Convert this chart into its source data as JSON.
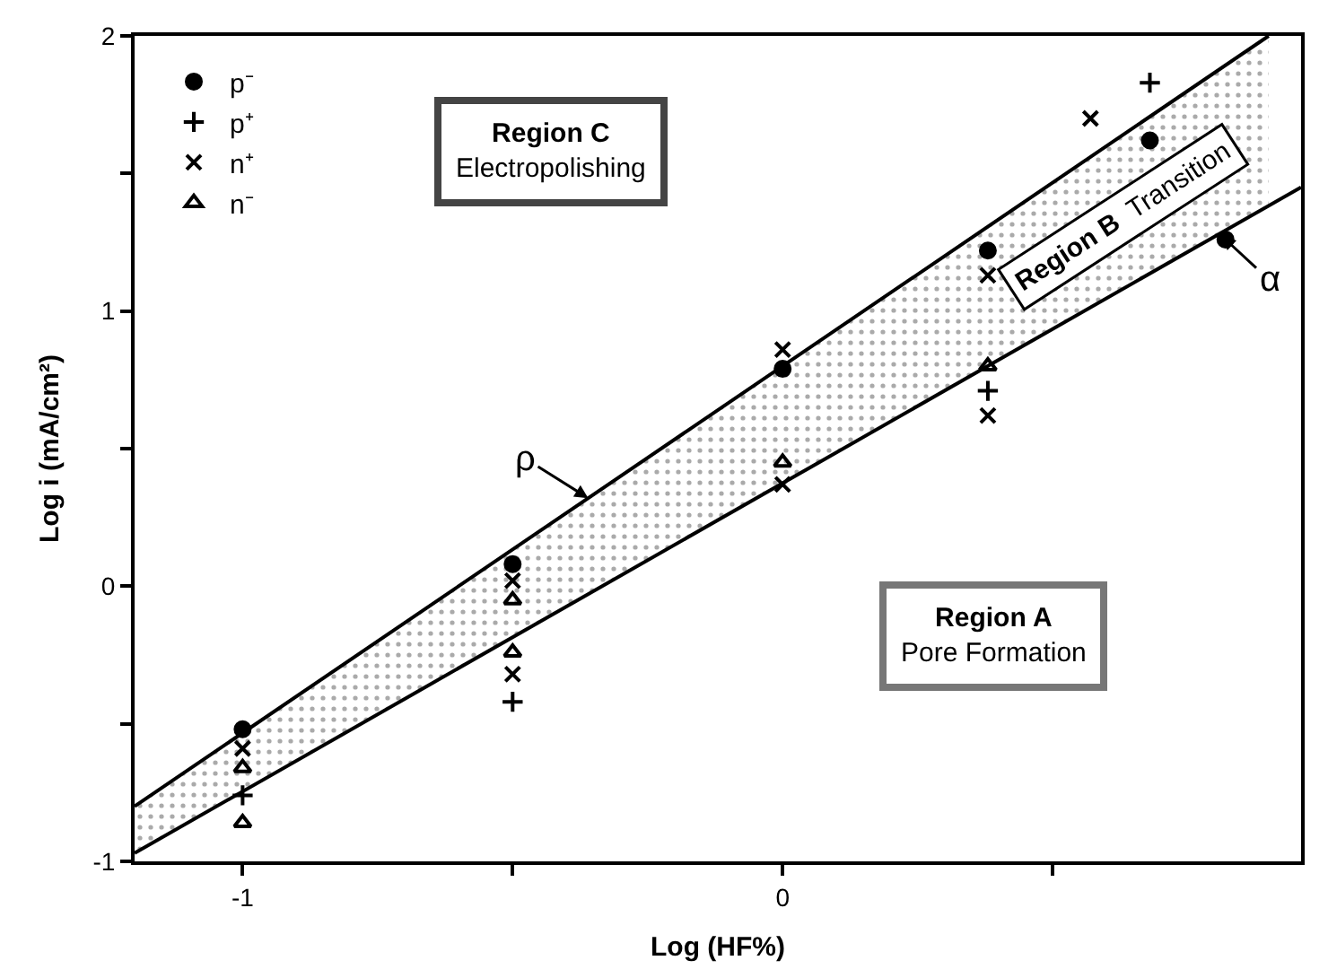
{
  "chart_data": {
    "type": "scatter",
    "xlabel": "Log (HF%)",
    "ylabel": "Log i (mA/cm²)",
    "xlim": [
      -1.2,
      0.96
    ],
    "xticks": [
      -1,
      {
        "value": -0.5,
        "label": null
      },
      0,
      {
        "value": 0.5,
        "label": null
      }
    ],
    "ylim": [
      -1,
      2
    ],
    "yticks": [
      -1,
      {
        "value": -0.5,
        "label": null
      },
      0,
      {
        "value": 0.5,
        "label": null
      },
      1,
      {
        "value": 1.5,
        "label": null
      },
      2
    ],
    "legend": "top left",
    "series": [
      {
        "name": "p⁻",
        "color": "#000000",
        "marker": "circle",
        "x": [
          -1,
          -0.5,
          0,
          0.38,
          0.68,
          0.82
        ],
        "values": [
          -0.52,
          0.08,
          0.79,
          1.22,
          1.62,
          1.26
        ]
      },
      {
        "name": "p⁺",
        "color": "#000000",
        "marker": "cross",
        "x": [
          -1,
          -0.5,
          0.38,
          0.68
        ],
        "values": [
          -0.76,
          -0.42,
          0.71,
          1.83
        ]
      },
      {
        "name": "n⁺",
        "color": "#000000",
        "marker": "x",
        "x": [
          -1,
          -0.5,
          -0.5,
          0,
          0,
          0.38,
          0.38,
          0.57
        ],
        "values": [
          -0.59,
          0.02,
          -0.32,
          0.86,
          0.37,
          1.13,
          0.62,
          1.7
        ]
      },
      {
        "name": "n⁻",
        "color": "#000000",
        "marker": "triangle",
        "x": [
          -1,
          -1,
          -0.5,
          -0.5,
          0,
          0.38
        ],
        "values": [
          -0.66,
          -0.86,
          -0.05,
          -0.24,
          0.45,
          0.8
        ]
      },
      {
        "name": "ρ",
        "type": "line",
        "color": "#000000",
        "x": [
          -1.2,
          0.9
        ],
        "values": [
          -0.8,
          2.0
        ],
        "lower": [
          -0.97,
          1.38
        ],
        "upper": [
          -0.8,
          2.0
        ]
      },
      {
        "name": "α",
        "type": "line",
        "color": "#000000",
        "x": [
          -1.2,
          0.96
        ],
        "values": [
          -0.97,
          1.45
        ]
      }
    ],
    "annotations": [
      "Region C\nElectropolishing",
      "Region B  Transition",
      "Region A\nPore Formation"
    ]
  }
}
